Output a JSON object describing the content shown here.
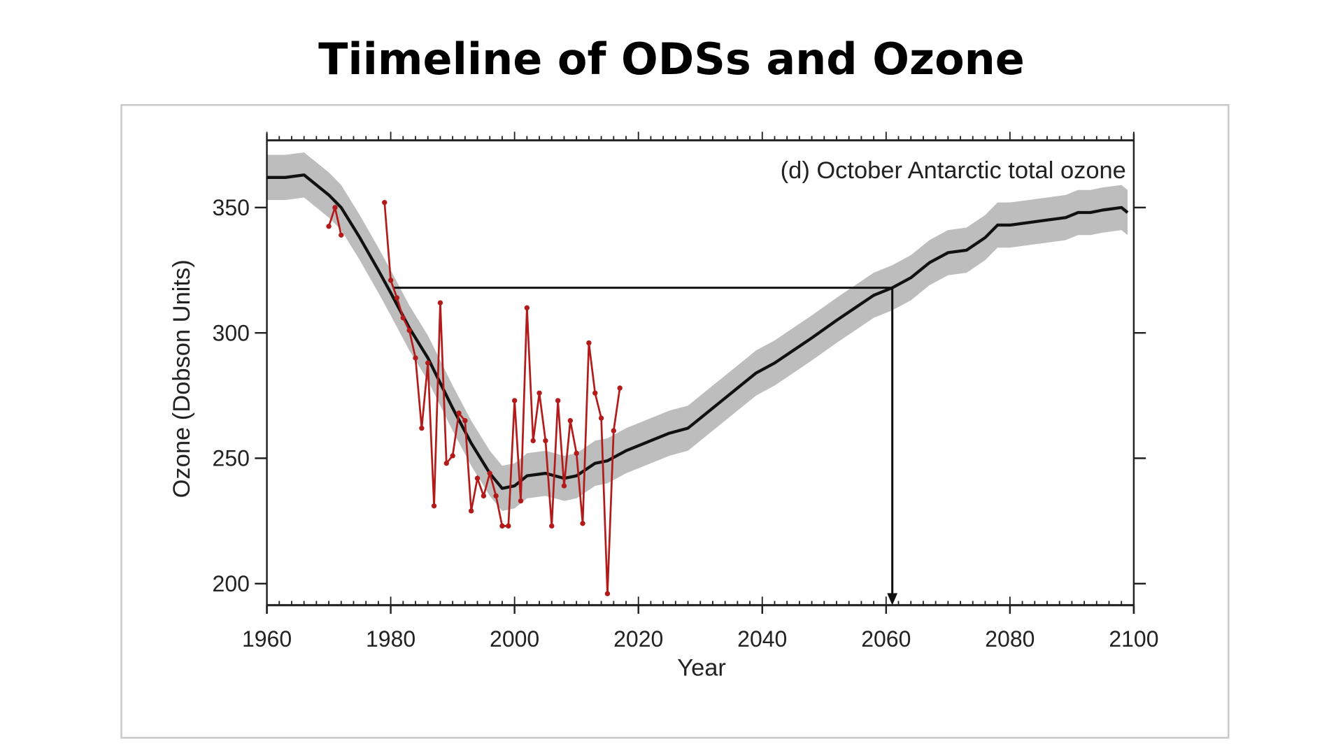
{
  "page_title": "Tiimeline of ODSs and Ozone",
  "chart_data": {
    "type": "line",
    "title": "(d) October Antarctic total ozone",
    "xlabel": "Year",
    "ylabel": "Ozone (Dobson Units)",
    "xlim": [
      1960,
      2100
    ],
    "ylim": [
      191.4,
      376.8
    ],
    "xticks": [
      1960,
      1980,
      2000,
      2020,
      2040,
      2060,
      2080,
      2100
    ],
    "yticks": [
      200,
      250,
      300,
      350
    ],
    "grid": false,
    "colors": {
      "model_mean": "#111111",
      "model_range": "#bdbdbd",
      "observations": "#b31b1b",
      "reference": "#111111"
    },
    "series": [
      {
        "role": "model-mean",
        "x": [
          1960,
          1963,
          1966,
          1970,
          1972,
          1975,
          1978,
          1980,
          1983,
          1986,
          1990,
          1993,
          1996,
          1998,
          2000,
          2002,
          2005,
          2008,
          2010,
          2013,
          2015,
          2018,
          2022,
          2025,
          2028,
          2030,
          2033,
          2036,
          2039,
          2042,
          2045,
          2048,
          2052,
          2055,
          2058,
          2061,
          2064,
          2067,
          2070,
          2073,
          2076,
          2078,
          2080,
          2083,
          2086,
          2089,
          2091,
          2093,
          2095,
          2098,
          2099
        ],
        "y": [
          362,
          362,
          363,
          355,
          350,
          338,
          325,
          316,
          302,
          290,
          270,
          256,
          244,
          238,
          239,
          243,
          244,
          242,
          243,
          248,
          249,
          253,
          257,
          260,
          262,
          266,
          272,
          278,
          284,
          288,
          293,
          298,
          305,
          310,
          315,
          318,
          322,
          328,
          332,
          333,
          338,
          343,
          343,
          344,
          345,
          346,
          348,
          348,
          349,
          350,
          348
        ],
        "uncertainty_halfwidth": 9
      },
      {
        "role": "observations",
        "segments": [
          {
            "x": [
              1970,
              1971,
              1972
            ],
            "y": [
              342.5,
              350,
              339
            ]
          },
          {
            "x": [
              1979,
              1980,
              1981,
              1982,
              1983,
              1984,
              1985,
              1986,
              1987,
              1988,
              1989,
              1990,
              1991,
              1992,
              1993,
              1994,
              1995,
              1996,
              1997,
              1998,
              1999,
              2000,
              2001,
              2002,
              2003,
              2004,
              2005,
              2006,
              2007,
              2008,
              2009,
              2010,
              2011,
              2012,
              2013,
              2014,
              2015,
              2016,
              2017
            ],
            "y": [
              352,
              321,
              314,
              306,
              301,
              290,
              262,
              288,
              231,
              312,
              248,
              251,
              268,
              265,
              229,
              242,
              235,
              244,
              235,
              223,
              223,
              273,
              233,
              310,
              257,
              276,
              257,
              223,
              273,
              239,
              265,
              252,
              224,
              296,
              276,
              266,
              196,
              261,
              278
            ]
          }
        ]
      }
    ],
    "reference": {
      "value": 318,
      "from_year": 1980.5,
      "recovery_year": 2061
    }
  }
}
